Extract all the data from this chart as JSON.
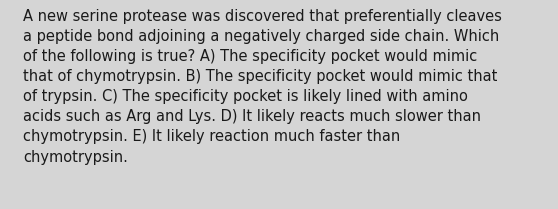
{
  "lines": [
    "A new serine protease was discovered that preferentially cleaves",
    "a peptide bond adjoining a negatively charged side chain. Which",
    "of the following is true? A) The specificity pocket would mimic",
    "that of chymotrypsin. B) The specificity pocket would mimic that",
    "of trypsin. C) The specificity pocket is likely lined with amino",
    "acids such as Arg and Lys. D) It likely reacts much slower than",
    "chymotrypsin. E) It likely reaction much faster than",
    "chymotrypsin."
  ],
  "background_color": "#d5d5d5",
  "text_color": "#1a1a1a",
  "font_size": 10.5,
  "font_family": "DejaVu Sans",
  "fig_width": 5.58,
  "fig_height": 2.09,
  "dpi": 100
}
